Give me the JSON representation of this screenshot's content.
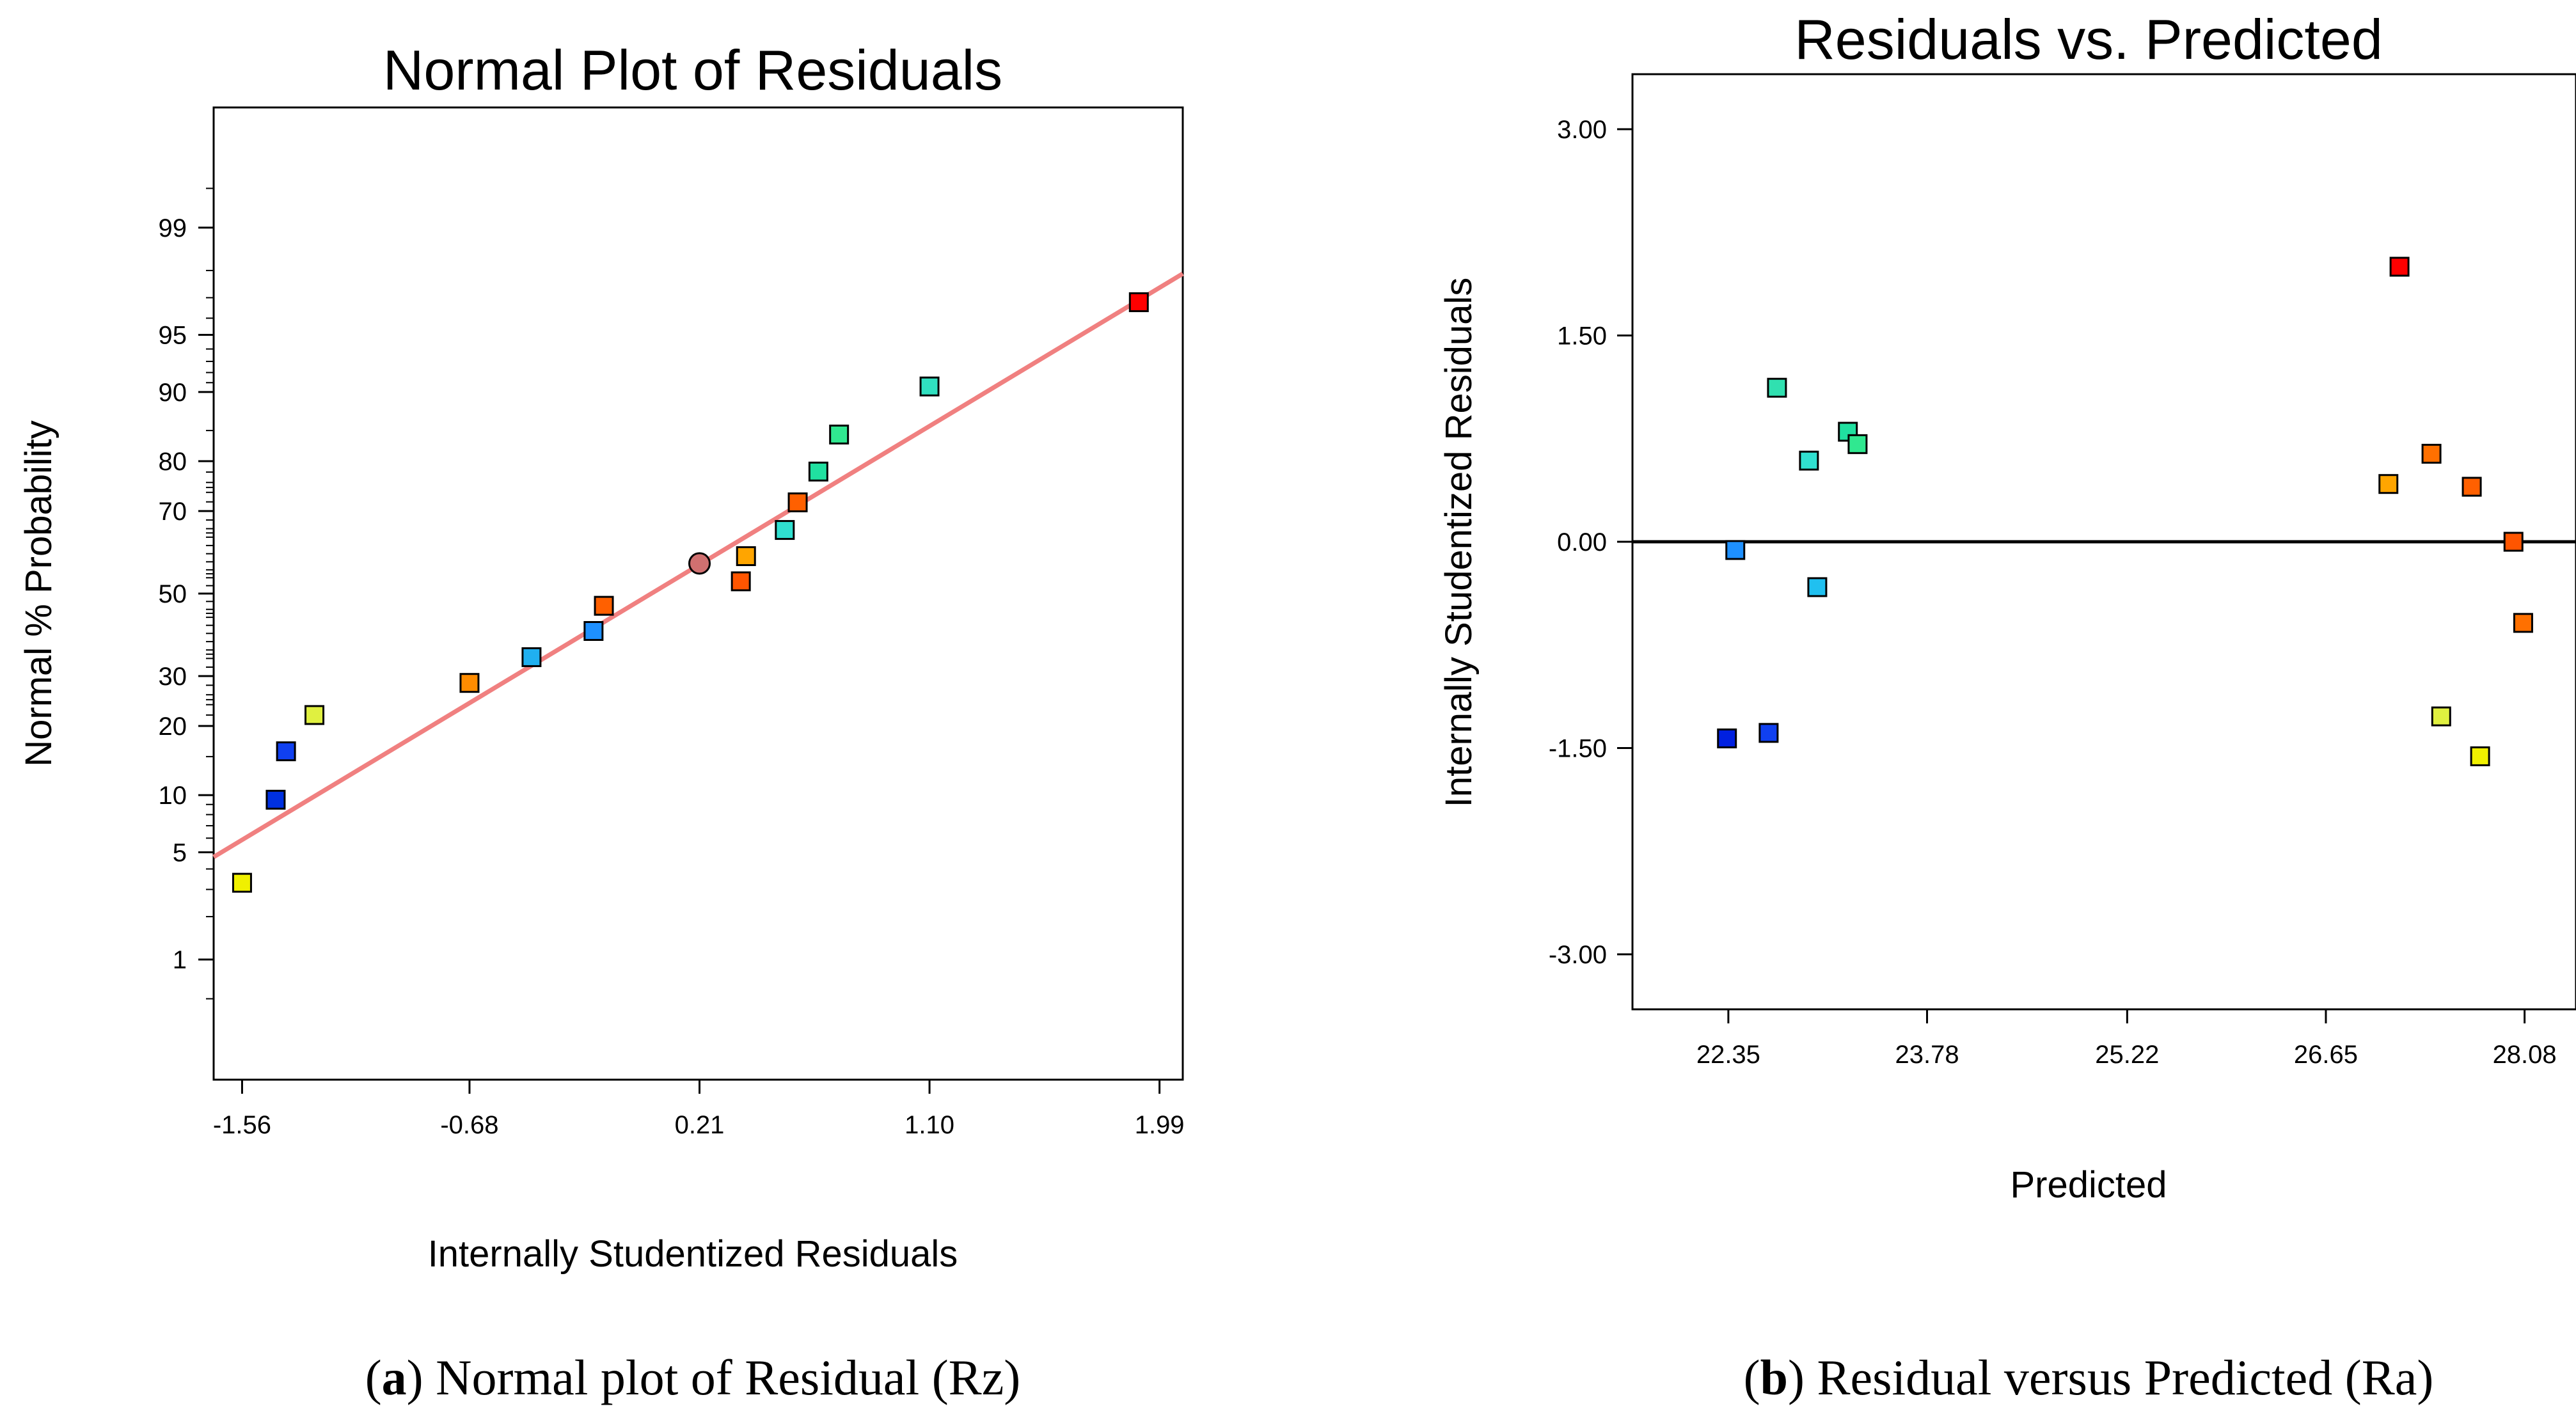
{
  "chart_data": [
    {
      "id": "a",
      "type": "scatter",
      "title": "Normal Plot of Residuals",
      "xlabel": "Internally Studentized Residuals",
      "ylabel": "Normal % Probability",
      "caption_letter": "a",
      "caption_text": ") Normal plot of Residual (Rz)",
      "xlim": [
        -1.67,
        2.08
      ],
      "x_ticks": [
        "-1.56",
        "-0.68",
        "0.21",
        "1.10",
        "1.99"
      ],
      "x_tick_values": [
        -1.56,
        -0.68,
        0.21,
        1.1,
        1.99
      ],
      "y_scale": "normal-probability",
      "y_range_pct": [
        0.1,
        99.9
      ],
      "y_ticks": [
        "1",
        "5",
        "10",
        "20",
        "30",
        "50",
        "70",
        "80",
        "90",
        "95",
        "99"
      ],
      "y_tick_values": [
        1,
        5,
        10,
        20,
        30,
        50,
        70,
        80,
        90,
        95,
        99
      ],
      "fit_line": {
        "x": [
          -1.67,
          2.08
        ],
        "y": [
          4.7,
          97.9
        ],
        "color": "#f08080"
      },
      "points": [
        {
          "x": -1.56,
          "y": 3.3,
          "color": "#f0f000"
        },
        {
          "x": -1.43,
          "y": 9.5,
          "color": "#0030e0"
        },
        {
          "x": -1.39,
          "y": 15.8,
          "color": "#1040f0"
        },
        {
          "x": -1.28,
          "y": 22.0,
          "color": "#e0f040"
        },
        {
          "x": -0.68,
          "y": 28.5,
          "color": "#ff8c00"
        },
        {
          "x": -0.44,
          "y": 34.3,
          "color": "#20b0f0"
        },
        {
          "x": -0.2,
          "y": 40.6,
          "color": "#1e90ff"
        },
        {
          "x": -0.16,
          "y": 46.9,
          "color": "#ff6000"
        },
        {
          "x": 0.21,
          "y": 57.6,
          "color": "#d07070",
          "marker": "circle"
        },
        {
          "x": 0.37,
          "y": 53.1,
          "color": "#ff5500"
        },
        {
          "x": 0.39,
          "y": 59.4,
          "color": "#ffa500"
        },
        {
          "x": 0.54,
          "y": 65.7,
          "color": "#30e0d0"
        },
        {
          "x": 0.59,
          "y": 71.9,
          "color": "#ff6000"
        },
        {
          "x": 0.67,
          "y": 78.1,
          "color": "#20e0a0"
        },
        {
          "x": 0.75,
          "y": 84.4,
          "color": "#30e890"
        },
        {
          "x": 1.1,
          "y": 90.6,
          "color": "#30e0c0"
        },
        {
          "x": 1.91,
          "y": 96.8,
          "color": "#ff0000"
        }
      ]
    },
    {
      "id": "b",
      "type": "scatter",
      "title": "Residuals vs. Predicted",
      "xlabel": "Predicted",
      "ylabel": "Internally Studentized Residuals",
      "caption_letter": "b",
      "caption_text": ") Residual versus Predicted (Ra)",
      "xlim": [
        21.66,
        28.45
      ],
      "ylim": [
        -3.4,
        3.4
      ],
      "x_ticks": [
        "22.35",
        "23.78",
        "25.22",
        "26.65",
        "28.08"
      ],
      "x_tick_values": [
        22.35,
        23.78,
        25.22,
        26.65,
        28.08
      ],
      "y_ticks": [
        "-3.00",
        "-1.50",
        "0.00",
        "1.50",
        "3.00"
      ],
      "y_tick_values": [
        -3.0,
        -1.5,
        0.0,
        1.5,
        3.0
      ],
      "zero_line": 0.0,
      "points": [
        {
          "x": 22.34,
          "y": -1.43,
          "color": "#0020e0"
        },
        {
          "x": 22.4,
          "y": -0.06,
          "color": "#1e90ff"
        },
        {
          "x": 22.64,
          "y": -1.39,
          "color": "#1040f0"
        },
        {
          "x": 22.7,
          "y": 1.12,
          "color": "#30e0b0"
        },
        {
          "x": 22.93,
          "y": 0.59,
          "color": "#30e0d0"
        },
        {
          "x": 22.99,
          "y": -0.33,
          "color": "#20c0f0"
        },
        {
          "x": 23.21,
          "y": 0.8,
          "color": "#20e0a0"
        },
        {
          "x": 23.28,
          "y": 0.71,
          "color": "#30e890"
        },
        {
          "x": 27.1,
          "y": 0.42,
          "color": "#ffa500"
        },
        {
          "x": 27.18,
          "y": 2.0,
          "color": "#ff0000"
        },
        {
          "x": 27.41,
          "y": 0.64,
          "color": "#ff7000"
        },
        {
          "x": 27.48,
          "y": -1.27,
          "color": "#e0f040"
        },
        {
          "x": 27.7,
          "y": 0.4,
          "color": "#ff6000"
        },
        {
          "x": 27.76,
          "y": -1.56,
          "color": "#f0f000"
        },
        {
          "x": 28.0,
          "y": 0.0,
          "color": "#ff5500"
        },
        {
          "x": 28.07,
          "y": -0.59,
          "color": "#ff7000"
        }
      ]
    }
  ]
}
